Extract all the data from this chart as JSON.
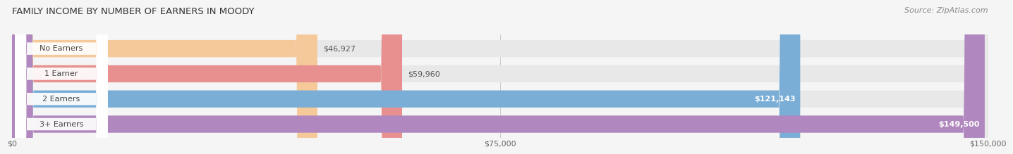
{
  "title": "FAMILY INCOME BY NUMBER OF EARNERS IN MOODY",
  "source": "Source: ZipAtlas.com",
  "categories": [
    "No Earners",
    "1 Earner",
    "2 Earners",
    "3+ Earners"
  ],
  "values": [
    46927,
    59960,
    121143,
    149500
  ],
  "max_value": 150000,
  "bar_colors": [
    "#f5c99a",
    "#e89090",
    "#7aaed6",
    "#b087be"
  ],
  "bar_bg_color": "#e8e8e8",
  "bar_labels": [
    "$46,927",
    "$59,960",
    "$121,143",
    "$149,500"
  ],
  "label_inside": [
    false,
    false,
    true,
    true
  ],
  "x_ticks": [
    0,
    75000,
    150000
  ],
  "x_tick_labels": [
    "$0",
    "$75,000",
    "$150,000"
  ],
  "title_fontsize": 9.5,
  "source_fontsize": 8,
  "label_fontsize": 8,
  "category_fontsize": 8,
  "background_color": "#f5f5f5",
  "bar_height": 0.68
}
